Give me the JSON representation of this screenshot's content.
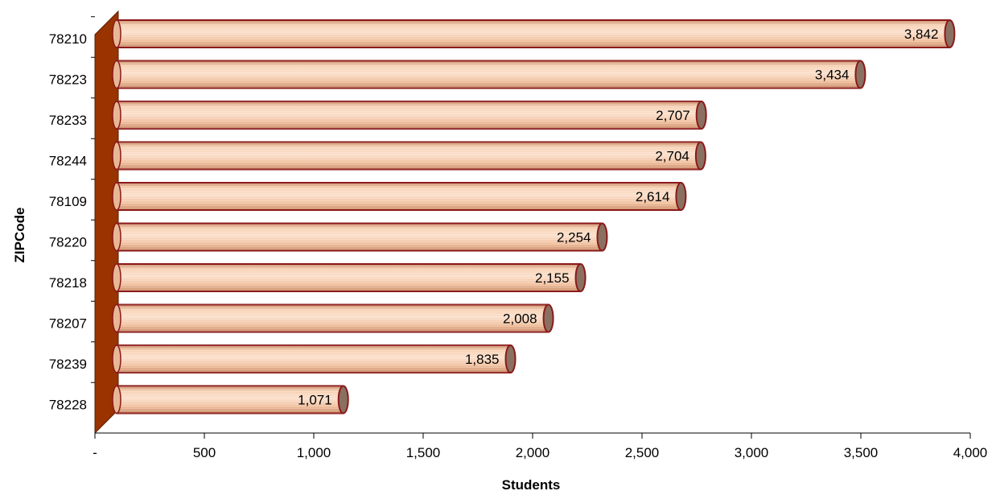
{
  "chart_data": {
    "type": "bar",
    "orientation": "horizontal",
    "categories": [
      "78210",
      "78223",
      "78233",
      "78244",
      "78109",
      "78220",
      "78218",
      "78207",
      "78239",
      "78228"
    ],
    "values": [
      3842,
      3434,
      2707,
      2704,
      2614,
      2254,
      2155,
      2008,
      1835,
      1071
    ],
    "value_labels": [
      "3,842",
      "3,434",
      "2,707",
      "2,704",
      "2,614",
      "2,254",
      "2,155",
      "2,008",
      "1,835",
      "1,071"
    ],
    "xlabel": "Students",
    "ylabel": "ZIPCode",
    "xlim": [
      0,
      4000
    ],
    "x_ticks": [
      0,
      500,
      1000,
      1500,
      2000,
      2500,
      3000,
      3500,
      4000
    ],
    "x_tick_labels": [
      "-",
      "500",
      "1,000",
      "1,500",
      "2,000",
      "2,500",
      "3,000",
      "3,500",
      "4,000"
    ],
    "grid": false,
    "legend": "none",
    "colors": {
      "bar_fill": "#f4c4a2",
      "bar_edge": "#8b1a1a",
      "bar_cap": "#8a7060",
      "wall": "#993300"
    }
  }
}
